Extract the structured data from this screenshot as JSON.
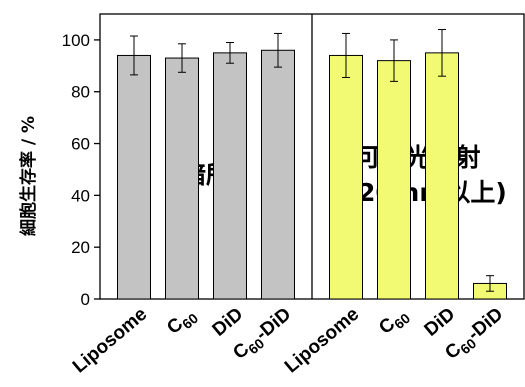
{
  "chart_data": {
    "type": "bar",
    "ylabel": "細胞生存率 / %",
    "ylim": [
      0,
      110
    ],
    "yticks": [
      0,
      20,
      40,
      60,
      80,
      100
    ],
    "grid": false,
    "groups": [
      {
        "annotation": [
          "暗所"
        ],
        "bar_color": "#c3c3c3",
        "categories": [
          {
            "main": "Liposome",
            "sub": "",
            "tail": ""
          },
          {
            "main": "C",
            "sub": "60",
            "tail": ""
          },
          {
            "main": "DiD",
            "sub": "",
            "tail": ""
          },
          {
            "main": "C",
            "sub": "60",
            "tail": "-DiD"
          }
        ],
        "values": [
          94,
          93,
          95,
          96
        ],
        "errors": [
          7.5,
          5.5,
          4,
          6.5
        ]
      },
      {
        "annotation": [
          "可視光照射",
          "(620 nm以上)"
        ],
        "bar_color": "#f2fa74",
        "categories": [
          {
            "main": "Liposome",
            "sub": "",
            "tail": ""
          },
          {
            "main": "C",
            "sub": "60",
            "tail": ""
          },
          {
            "main": "DiD",
            "sub": "",
            "tail": ""
          },
          {
            "main": "C",
            "sub": "60",
            "tail": "-DiD"
          }
        ],
        "values": [
          94,
          92,
          95,
          6
        ],
        "errors": [
          8.5,
          8,
          9,
          3
        ]
      }
    ]
  }
}
